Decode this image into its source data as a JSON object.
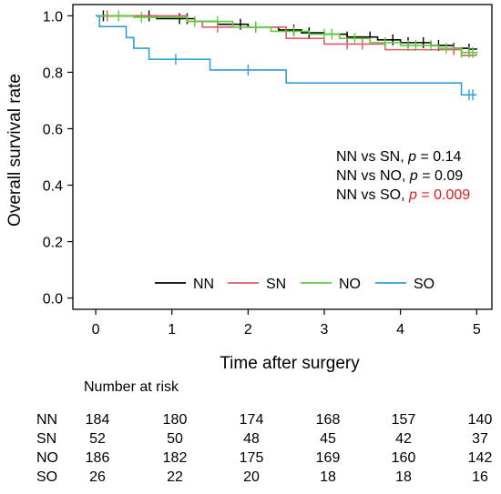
{
  "chart_data": {
    "type": "line",
    "subtype": "kaplan-meier",
    "title": "",
    "xlabel": "Time after surgery",
    "ylabel": "Overall survival rate",
    "xlim": [
      -0.3,
      5.2
    ],
    "ylim": [
      -0.04,
      1.04
    ],
    "x_ticks": [
      0,
      1,
      2,
      3,
      4,
      5
    ],
    "y_ticks": [
      0.0,
      0.2,
      0.4,
      0.6,
      0.8,
      1.0
    ],
    "y_tick_labels": [
      "0.0",
      "0.2",
      "0.4",
      "0.6",
      "0.8",
      "1.0"
    ],
    "grid": false,
    "legend_position": "bottom-center",
    "series": [
      {
        "name": "NN",
        "color": "#000000",
        "steps": [
          [
            0,
            1.0
          ],
          [
            0.8,
            0.99
          ],
          [
            1.3,
            0.98
          ],
          [
            1.6,
            0.97
          ],
          [
            2.0,
            0.96
          ],
          [
            2.4,
            0.95
          ],
          [
            2.7,
            0.94
          ],
          [
            3.0,
            0.935
          ],
          [
            3.3,
            0.925
          ],
          [
            3.7,
            0.915
          ],
          [
            4.0,
            0.905
          ],
          [
            4.4,
            0.895
          ],
          [
            4.7,
            0.885
          ],
          [
            4.9,
            0.882
          ],
          [
            5.0,
            0.88
          ]
        ],
        "censor": [
          0.1,
          0.7,
          1.1,
          1.2,
          1.9,
          2.1,
          2.6,
          2.8,
          3.3,
          3.6,
          3.9,
          4.1,
          4.3,
          4.5,
          4.7,
          4.9
        ]
      },
      {
        "name": "SN",
        "color": "#e05a68",
        "steps": [
          [
            0,
            1.0
          ],
          [
            1.2,
            0.98
          ],
          [
            1.4,
            0.96
          ],
          [
            2.5,
            0.92
          ],
          [
            3.0,
            0.9
          ],
          [
            3.8,
            0.88
          ],
          [
            4.8,
            0.86
          ],
          [
            5.0,
            0.86
          ]
        ],
        "censor": [
          0.15,
          1.6,
          3.3,
          3.5,
          4.7
        ]
      },
      {
        "name": "NO",
        "color": "#5fcc3c",
        "steps": [
          [
            0,
            1.0
          ],
          [
            0.5,
            0.995
          ],
          [
            1.2,
            0.98
          ],
          [
            1.8,
            0.96
          ],
          [
            2.3,
            0.945
          ],
          [
            2.8,
            0.935
          ],
          [
            3.2,
            0.92
          ],
          [
            3.6,
            0.905
          ],
          [
            4.0,
            0.895
          ],
          [
            4.5,
            0.885
          ],
          [
            4.8,
            0.87
          ],
          [
            5.0,
            0.86
          ]
        ],
        "censor": [
          0.3,
          0.6,
          1.3,
          1.6,
          2.1,
          2.6,
          3.0,
          3.1,
          3.4,
          3.8,
          4.1,
          4.2,
          4.4,
          4.6,
          4.8,
          4.9,
          4.95
        ]
      },
      {
        "name": "SO",
        "color": "#2f9fd8",
        "steps": [
          [
            0,
            1.0
          ],
          [
            0.05,
            0.962
          ],
          [
            0.4,
            0.923
          ],
          [
            0.5,
            0.885
          ],
          [
            0.7,
            0.846
          ],
          [
            1.5,
            0.808
          ],
          [
            2.5,
            0.762
          ],
          [
            4.8,
            0.72
          ],
          [
            5.0,
            0.72
          ]
        ],
        "censor": [
          1.05,
          2.0,
          4.9,
          4.95
        ]
      }
    ],
    "annotations": [
      {
        "text": "NN vs SN, ",
        "p_label": "p",
        "p_value": " = 0.14",
        "highlight": false
      },
      {
        "text": "NN vs NO, ",
        "p_label": "p",
        "p_value": " = 0.09",
        "highlight": false
      },
      {
        "text": "NN vs SO, ",
        "p_label": "p",
        "p_value": " = 0.009",
        "highlight": true
      }
    ],
    "highlight_color": "#e0191e",
    "risk_table": {
      "title": "Number at risk",
      "rows": [
        {
          "group": "NN",
          "counts": [
            184,
            180,
            174,
            168,
            157,
            140
          ]
        },
        {
          "group": "SN",
          "counts": [
            52,
            50,
            48,
            45,
            42,
            37
          ]
        },
        {
          "group": "NO",
          "counts": [
            186,
            182,
            175,
            169,
            160,
            142
          ]
        },
        {
          "group": "SO",
          "counts": [
            26,
            22,
            20,
            18,
            18,
            16
          ]
        }
      ]
    }
  }
}
